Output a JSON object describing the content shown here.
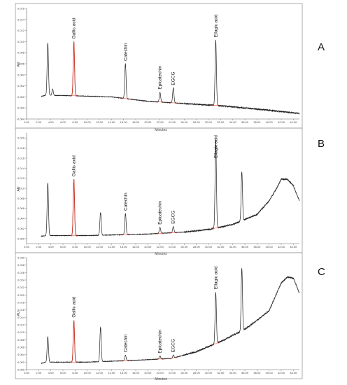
{
  "panel_letters": [
    "A",
    "B",
    "C"
  ],
  "colors": {
    "trace": "#222222",
    "highlight": "#d93a2b",
    "frame": "#9a9a9a",
    "grid": "#e6e6e6"
  },
  "chart_data": [
    {
      "type": "line",
      "panel_label": "A",
      "xlabel": "Minutes",
      "ylabel": "AU",
      "xlim": [
        0,
        45
      ],
      "ylim": [
        -0.004,
        0.016
      ],
      "grid": false,
      "x_ticks": [
        "0.00",
        "2.00",
        "4.00",
        "6.00",
        "8.00",
        "10.00",
        "12.00",
        "14.00",
        "16.00",
        "18.00",
        "20.00",
        "22.00",
        "24.00",
        "26.00",
        "28.00",
        "30.00",
        "32.00",
        "34.00",
        "36.00",
        "38.00",
        "40.00",
        "42.00",
        "44.00"
      ],
      "y_ticks": [
        "-0.004",
        "-0.002",
        "0.000",
        "0.002",
        "0.004",
        "0.006",
        "0.008",
        "0.010",
        "0.012",
        "0.014",
        "0.016"
      ],
      "baseline": [
        [
          0,
          -0.0004
        ],
        [
          2,
          0.0
        ],
        [
          3.2,
          0.0003
        ],
        [
          8,
          0.0002
        ],
        [
          14,
          0.0
        ],
        [
          20,
          -0.0008
        ],
        [
          26,
          -0.0012
        ],
        [
          32,
          -0.0016
        ],
        [
          38,
          -0.0022
        ],
        [
          45,
          -0.003
        ]
      ],
      "peaks": [
        {
          "label": "",
          "x": 3.5,
          "height": 0.0095
        },
        {
          "label": "",
          "x": 4.3,
          "height": 0.0011
        },
        {
          "label": "Gallic acid",
          "x": 7.8,
          "height": 0.0098
        },
        {
          "label": "Catechin",
          "x": 16.3,
          "height": 0.0063
        },
        {
          "label": "Epicatechin",
          "x": 22.0,
          "height": 0.0018
        },
        {
          "label": "EGCG",
          "x": 24.2,
          "height": 0.0027
        },
        {
          "label": "Ellagic acid",
          "x": 31.2,
          "height": 0.0118
        }
      ]
    },
    {
      "type": "line",
      "panel_label": "B",
      "xlabel": "Minutes",
      "ylabel": "AU",
      "xlim": [
        0,
        45
      ],
      "ylim": [
        -0.001,
        0.021
      ],
      "grid": false,
      "x_ticks": [
        "0.00",
        "2.00",
        "4.00",
        "6.00",
        "8.00",
        "10.00",
        "12.00",
        "14.00",
        "16.00",
        "18.00",
        "20.00",
        "22.00",
        "24.00",
        "26.00",
        "28.00",
        "30.00",
        "32.00",
        "34.00",
        "36.00",
        "38.00",
        "40.00",
        "42.00",
        "44.00"
      ],
      "y_ticks": [
        "0.000",
        "0.002",
        "0.004",
        "0.006",
        "0.008",
        "0.010",
        "0.012",
        "0.014",
        "0.016",
        "0.018",
        "0.020"
      ],
      "baseline": [
        [
          0,
          0.0
        ],
        [
          2,
          0.0004
        ],
        [
          3.2,
          0.0006
        ],
        [
          10,
          0.0006
        ],
        [
          20,
          0.0009
        ],
        [
          26,
          0.0013
        ],
        [
          30,
          0.0018
        ],
        [
          34,
          0.0028
        ],
        [
          36,
          0.0038
        ],
        [
          38,
          0.0048
        ],
        [
          40,
          0.0075
        ],
        [
          41,
          0.0095
        ],
        [
          42,
          0.0118
        ],
        [
          43,
          0.0118
        ],
        [
          44,
          0.0105
        ],
        [
          45,
          0.0075
        ]
      ],
      "peaks": [
        {
          "label": "",
          "x": 3.5,
          "height": 0.0105
        },
        {
          "label": "Gallic acid",
          "x": 7.8,
          "height": 0.0112
        },
        {
          "label": "",
          "x": 12.2,
          "height": 0.0045
        },
        {
          "label": "Catechin",
          "x": 16.3,
          "height": 0.0042
        },
        {
          "label": "Epicatechin",
          "x": 22.0,
          "height": 0.0012
        },
        {
          "label": "EGCG",
          "x": 24.2,
          "height": 0.0012
        },
        {
          "label": "Ellagic acid",
          "x": 31.2,
          "height": 0.0175
        },
        {
          "label": "",
          "x": 35.5,
          "height": 0.0098
        }
      ]
    },
    {
      "type": "line",
      "panel_label": "C",
      "xlabel": "Minutes",
      "ylabel": "AU",
      "xlim": [
        0,
        45
      ],
      "ylim": [
        0,
        0.03
      ],
      "grid": false,
      "x_ticks": [
        "0.00",
        "2.00",
        "4.00",
        "6.00",
        "8.00",
        "10.00",
        "12.00",
        "14.00",
        "16.00",
        "18.00",
        "20.00",
        "22.00",
        "24.00",
        "26.00",
        "28.00",
        "30.00",
        "32.00",
        "34.00",
        "36.00",
        "38.00",
        "40.00",
        "42.00",
        "44.00"
      ],
      "y_ticks": [
        "0.000",
        "0.002",
        "0.004",
        "0.006",
        "0.008",
        "0.010",
        "0.012",
        "0.014",
        "0.016",
        "0.018",
        "0.020",
        "0.022",
        "0.024",
        "0.026",
        "0.028",
        "0.030"
      ],
      "baseline": [
        [
          0,
          0.0
        ],
        [
          2,
          0.0015
        ],
        [
          3.2,
          0.002
        ],
        [
          10,
          0.002
        ],
        [
          18,
          0.0025
        ],
        [
          24,
          0.003
        ],
        [
          28,
          0.0048
        ],
        [
          32,
          0.0075
        ],
        [
          36,
          0.0108
        ],
        [
          38,
          0.0132
        ],
        [
          40,
          0.0158
        ],
        [
          42,
          0.0232
        ],
        [
          43,
          0.0248
        ],
        [
          44,
          0.0245
        ],
        [
          45,
          0.0205
        ]
      ],
      "peaks": [
        {
          "label": "",
          "x": 3.5,
          "height": 0.0068
        },
        {
          "label": "Gallic acid",
          "x": 7.8,
          "height": 0.0112
        },
        {
          "label": "",
          "x": 12.2,
          "height": 0.0092
        },
        {
          "label": "Catechin",
          "x": 16.3,
          "height": 0.0015
        },
        {
          "label": "Epicatechin",
          "x": 22.0,
          "height": 0.0008
        },
        {
          "label": "EGCG",
          "x": 24.2,
          "height": 0.0008
        },
        {
          "label": "Ellagic acid",
          "x": 31.2,
          "height": 0.0138
        },
        {
          "label": "",
          "x": 35.5,
          "height": 0.0168
        }
      ]
    }
  ]
}
